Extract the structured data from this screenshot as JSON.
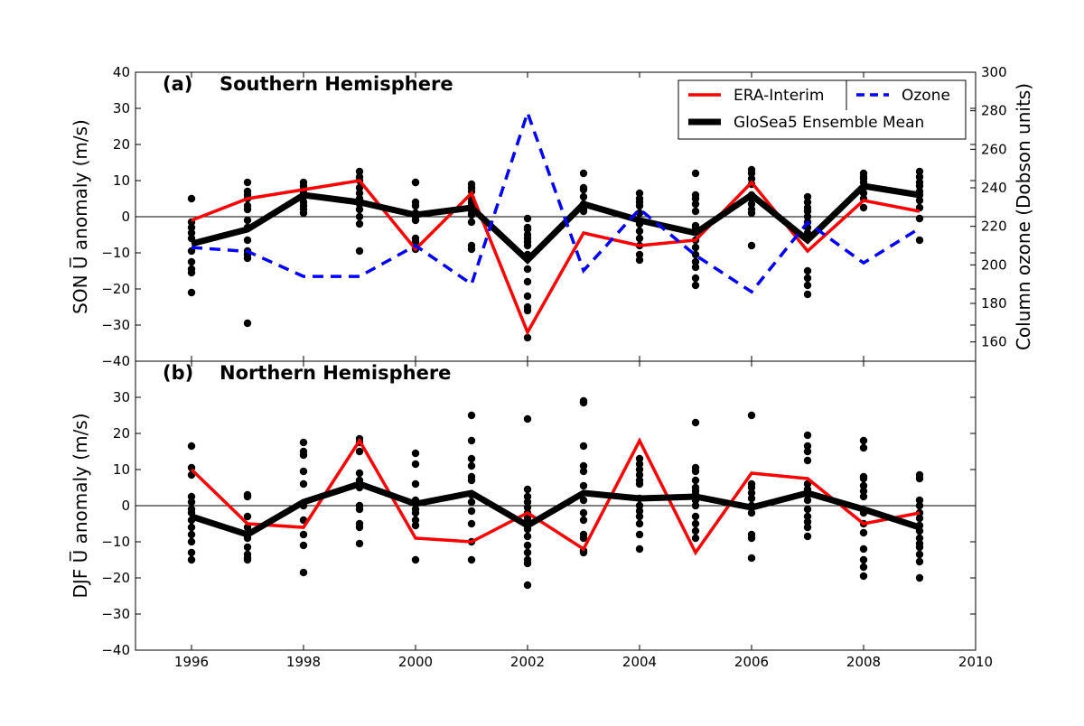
{
  "chart_data": [
    {
      "type": "line",
      "panel_label": "(a)",
      "title": "Southern Hemisphere",
      "ylabel": "SON U̅ anomaly (m/s)",
      "y2label": "Column ozone (Dobson units)",
      "xlim": [
        1995,
        2010
      ],
      "ylim": [
        -40,
        40
      ],
      "y2lim": [
        150,
        300
      ],
      "x_ticks": [
        1996,
        1998,
        2000,
        2002,
        2004,
        2006,
        2008,
        2010
      ],
      "y_ticks": [
        -40,
        -30,
        -20,
        -10,
        0,
        10,
        20,
        30,
        40
      ],
      "y2_ticks": [
        160,
        180,
        200,
        220,
        240,
        260,
        280,
        300
      ],
      "zero_line": true,
      "legend_position": "top-right",
      "x": [
        1996,
        1997,
        1998,
        1999,
        2000,
        2001,
        2002,
        2003,
        2004,
        2005,
        2006,
        2007,
        2008,
        2009
      ],
      "series": [
        {
          "name": "ERA-Interim",
          "color": "#ff0000",
          "style": "solid",
          "axis": "left",
          "values": [
            -1,
            5,
            7.5,
            10,
            -9,
            6.5,
            -32,
            -4.5,
            -8,
            -6.5,
            9.5,
            -9.5,
            4.5,
            1.5
          ]
        },
        {
          "name": "GloSea5 Ensemble Mean",
          "color": "#000000",
          "style": "solid-thick",
          "axis": "left",
          "values": [
            -7.5,
            -3.5,
            6,
            4,
            0.5,
            2.5,
            -12,
            3.5,
            -1,
            -4.5,
            6,
            -6.5,
            8.5,
            6
          ]
        },
        {
          "name": "Ozone",
          "color": "#0000ff",
          "style": "dashed",
          "axis": "right",
          "values": [
            209,
            207,
            194,
            194,
            210,
            190,
            279,
            197,
            229,
            205,
            186,
            222,
            201,
            219
          ]
        }
      ],
      "members": [
        [
          5,
          -1.5,
          -3,
          -4.5,
          -6,
          -9.5,
          -12.5,
          -14.5,
          -15.5,
          -21
        ],
        [
          9.5,
          7,
          6,
          5,
          3,
          2,
          -1,
          -3,
          -6.5,
          -9.5,
          -10.5,
          -11.5,
          -29.5
        ],
        [
          9.5,
          8.5,
          7.5,
          6.5,
          5.5,
          4,
          3,
          2,
          1
        ],
        [
          12.5,
          11,
          10,
          8,
          6.5,
          5,
          3.5,
          2,
          0,
          -2,
          -9.5
        ],
        [
          9.5,
          9.5,
          4,
          3,
          1,
          0,
          -1,
          -6,
          -7,
          -9
        ],
        [
          9,
          8,
          7,
          5,
          4,
          3,
          1.5,
          0.5,
          -1.5,
          -8,
          -9
        ],
        [
          -0.5,
          -3,
          -3.5,
          -5,
          -6,
          -7,
          -8,
          -10.5,
          -14.5,
          -18,
          -22,
          -25,
          -26,
          -33.5
        ],
        [
          12,
          8,
          7.5,
          5.5,
          3.5,
          2,
          1.5
        ],
        [
          6.5,
          5,
          4,
          3,
          1,
          -2,
          -4,
          -6,
          -8,
          -10.5,
          -12
        ],
        [
          12,
          6,
          5,
          3.5,
          1.5,
          -2.5,
          -3,
          -4,
          -6.5,
          -8.5,
          -10.5,
          -12.5,
          -14,
          -17,
          -19
        ],
        [
          13,
          12,
          10.5,
          9,
          6,
          5,
          3.5,
          2,
          1,
          -8
        ],
        [
          5.5,
          4,
          2.5,
          1.5,
          0,
          -1.5,
          -3,
          -4.5,
          -6,
          -15,
          -17,
          -19,
          -21.5
        ],
        [
          12,
          11,
          10.5,
          9.5,
          8,
          6.5,
          5,
          2.5
        ],
        [
          12.5,
          11,
          9.5,
          8.5,
          7,
          6,
          4.5,
          2.5,
          -0.5,
          -6.5
        ]
      ]
    },
    {
      "type": "line",
      "panel_label": "(b)",
      "title": "Northern Hemisphere",
      "ylabel": "DJF U̅ anomaly (m/s)",
      "xlim": [
        1995,
        2010
      ],
      "ylim": [
        -40,
        40
      ],
      "x_ticks": [
        1996,
        1998,
        2000,
        2002,
        2004,
        2006,
        2008,
        2010
      ],
      "y_ticks": [
        -40,
        -30,
        -20,
        -10,
        0,
        10,
        20,
        30
      ],
      "zero_line": true,
      "x": [
        1996,
        1997,
        1998,
        1999,
        2000,
        2001,
        2002,
        2003,
        2004,
        2005,
        2006,
        2007,
        2008,
        2009
      ],
      "series": [
        {
          "name": "ERA-Interim",
          "color": "#ff0000",
          "style": "solid",
          "axis": "left",
          "values": [
            10,
            -5,
            -6,
            18,
            -9,
            -10,
            -2,
            -12,
            18,
            -13,
            9,
            7.5,
            -5,
            -2
          ]
        },
        {
          "name": "GloSea5 Ensemble Mean",
          "color": "#000000",
          "style": "solid-thick",
          "axis": "left",
          "values": [
            -3,
            -8,
            1,
            6,
            0.5,
            3.5,
            -5.5,
            3.5,
            2,
            2.5,
            -0.5,
            3.5,
            -1,
            -6
          ]
        }
      ],
      "members": [
        [
          16.5,
          10.5,
          8.5,
          2.5,
          1,
          -1,
          -2,
          -4,
          -6,
          -8,
          -10,
          -13,
          -15
        ],
        [
          3,
          2.5,
          -3,
          -6,
          -9,
          -11.5,
          -13.5,
          -14.5,
          -15
        ],
        [
          17.5,
          15,
          14,
          9.5,
          6,
          0,
          -4,
          -8,
          -11,
          -18.5
        ],
        [
          18.5,
          17.5,
          15,
          9,
          7,
          5,
          0,
          -1,
          -5,
          -6,
          -10.5
        ],
        [
          14.5,
          11.5,
          6,
          1.5,
          0.5,
          -1,
          -2,
          -4,
          -5.5,
          -15
        ],
        [
          25,
          18,
          13,
          11,
          8,
          7,
          3,
          1,
          -1.5,
          -5,
          -10,
          -15
        ],
        [
          24,
          4.5,
          2.5,
          1,
          -0.5,
          -2,
          -3.5,
          -5,
          -6.5,
          -8.5,
          -11,
          -13,
          -15,
          -16,
          -22
        ],
        [
          29,
          28.5,
          16.5,
          11,
          9.5,
          5.5,
          1.5,
          -2,
          -4,
          -8,
          -9,
          -12.5,
          -13
        ],
        [
          13,
          11.5,
          10,
          8.5,
          7,
          6,
          2,
          0,
          -1.5,
          -3,
          -5,
          -8,
          -12
        ],
        [
          23,
          10.5,
          9.5,
          7,
          5,
          4,
          3,
          1.5,
          0,
          -3,
          -5,
          -7,
          -9
        ],
        [
          25,
          6,
          5,
          3.5,
          2,
          0,
          -2,
          -8,
          -9,
          -14.5
        ],
        [
          19.5,
          16.5,
          15,
          12.5,
          6,
          4.5,
          3,
          1.5,
          -1,
          -3,
          -4.5,
          -6,
          -8.5
        ],
        [
          18,
          16,
          8,
          7.5,
          5.5,
          4,
          2.5,
          -2,
          -5,
          -7.5,
          -12,
          -15,
          -17,
          -19.5
        ],
        [
          8.5,
          7.5,
          1.5,
          0,
          -2,
          -3.5,
          -5.5,
          -7,
          -9,
          -10.5,
          -11.5,
          -13.5,
          -15.5,
          -20
        ]
      ]
    }
  ]
}
